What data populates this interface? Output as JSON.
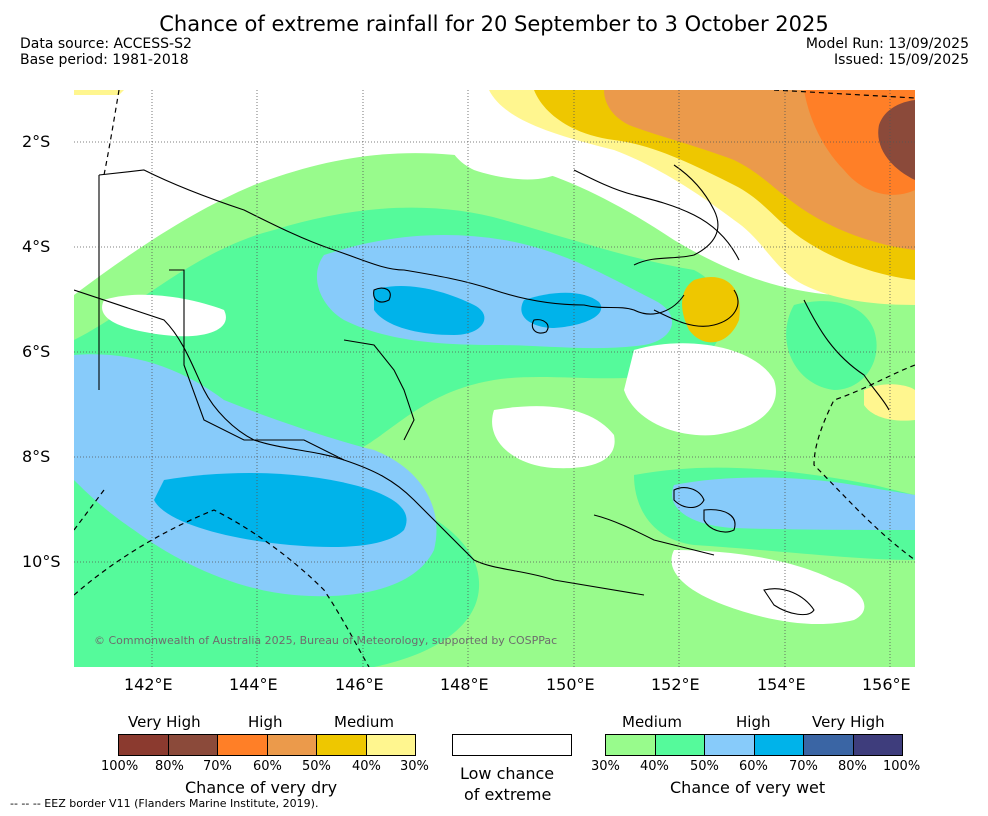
{
  "title": "Chance of extreme rainfall for 20 September to 3 October 2025",
  "meta": {
    "data_source": "Data source: ACCESS-S2",
    "base_period": "Base period: 1981-2018",
    "model_run": "Model Run: 13/09/2025",
    "issued": "Issued: 15/09/2025"
  },
  "map": {
    "lat_labels": [
      "2°S",
      "4°S",
      "6°S",
      "8°S",
      "10°S"
    ],
    "lon_labels": [
      "142°E",
      "144°E",
      "146°E",
      "148°E",
      "150°E",
      "152°E",
      "154°E",
      "156°E"
    ],
    "copyright": "© Commonwealth of Australia 2025, Bureau of Meteorology, supported by COSPPac",
    "eez_note": "-- -- -- EEZ border V11 (Flanders Marine Institute, 2019)."
  },
  "legend": {
    "dry": {
      "levels": [
        "Very High",
        "High",
        "Medium"
      ],
      "colors": [
        "#8b3a2f",
        "#8b4a3a",
        "#ff7f27",
        "#eb9a4b",
        "#eec700",
        "#fff68f"
      ],
      "ticks": [
        "100%",
        "80%",
        "70%",
        "60%",
        "50%",
        "40%",
        "30%"
      ],
      "caption": "Chance of very dry"
    },
    "neutral": {
      "color": "#ffffff",
      "caption_line1": "Low chance",
      "caption_line2": "of extreme"
    },
    "wet": {
      "levels": [
        "Medium",
        "High",
        "Very High"
      ],
      "colors": [
        "#98fb8c",
        "#55fa9b",
        "#87cbfa",
        "#00b3ea",
        "#3a65a4",
        "#3e3d7c"
      ],
      "ticks": [
        "30%",
        "40%",
        "50%",
        "60%",
        "70%",
        "80%",
        "100%"
      ],
      "caption": "Chance of very wet"
    }
  }
}
